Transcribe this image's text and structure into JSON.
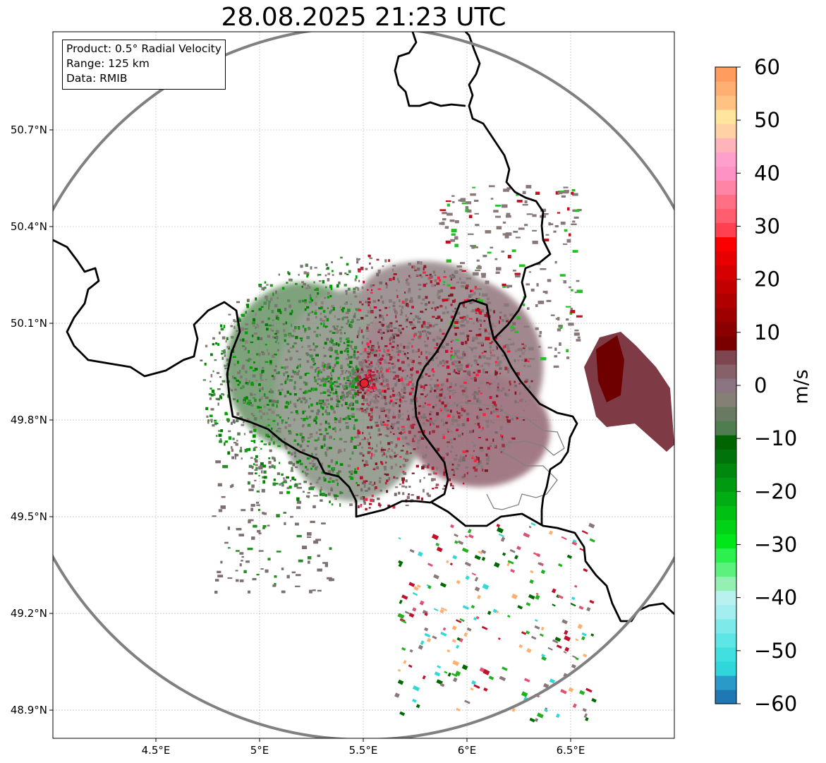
{
  "title": "28.08.2025 21:23 UTC",
  "info": {
    "product": "Product: 0.5° Radial Velocity",
    "range": "Range: 125 km",
    "source": "Data: RMIB"
  },
  "map": {
    "lon_range": [
      4.0,
      7.0
    ],
    "lat_range": [
      48.8,
      51.0
    ],
    "x_ticks": [
      {
        "value": 4.5,
        "label": "4.5°E"
      },
      {
        "value": 5.0,
        "label": "5°E"
      },
      {
        "value": 5.5,
        "label": "5.5°E"
      },
      {
        "value": 6.0,
        "label": "6°E"
      },
      {
        "value": 6.5,
        "label": "6.5°E"
      }
    ],
    "y_ticks": [
      {
        "value": 48.9,
        "label": "48.9°N"
      },
      {
        "value": 49.2,
        "label": "49.2°N"
      },
      {
        "value": 49.5,
        "label": "49.5°N"
      },
      {
        "value": 49.8,
        "label": "49.8°N"
      },
      {
        "value": 50.1,
        "label": "50.1°N"
      },
      {
        "value": 50.4,
        "label": "50.4°N"
      },
      {
        "value": 50.7,
        "label": "50.7°N"
      }
    ],
    "radar_site": {
      "lon": 5.505,
      "lat": 49.914,
      "color": "#e8202a"
    },
    "range_ring_km": 125,
    "range_ring_color": "#808080",
    "border_color": "#000000",
    "admin_border_color": "#808080"
  },
  "colorbar": {
    "unit": "m/s",
    "vmin": -60,
    "vmax": 60,
    "ticks": [
      {
        "value": 60,
        "label": "60"
      },
      {
        "value": 50,
        "label": "50"
      },
      {
        "value": 40,
        "label": "40"
      },
      {
        "value": 30,
        "label": "30"
      },
      {
        "value": 20,
        "label": "20"
      },
      {
        "value": 10,
        "label": "10"
      },
      {
        "value": 0,
        "label": "0"
      },
      {
        "value": -10,
        "label": "−10"
      },
      {
        "value": -20,
        "label": "−20"
      },
      {
        "value": -30,
        "label": "−30"
      },
      {
        "value": -40,
        "label": "−40"
      },
      {
        "value": -50,
        "label": "−50"
      },
      {
        "value": -60,
        "label": "−60"
      }
    ],
    "colors_bottom_to_top": [
      "#1f77b4",
      "#2a9bc8",
      "#2fd6db",
      "#3fe0df",
      "#5ee6e6",
      "#7de9e9",
      "#a3eeee",
      "#b9f1f1",
      "#93f0b2",
      "#5cf07d",
      "#2cf04e",
      "#00e61a",
      "#00d218",
      "#00c014",
      "#00ad12",
      "#009a10",
      "#00870d",
      "#00740b",
      "#006400",
      "#4f7d50",
      "#687a62",
      "#848076",
      "#8a7580",
      "#86616a",
      "#7e4650",
      "#7a0000",
      "#8b0000",
      "#9e0000",
      "#b00000",
      "#c30000",
      "#d60000",
      "#e80000",
      "#fa0000",
      "#ff4050",
      "#ff5e6e",
      "#ff7085",
      "#ff84a5",
      "#ff92c4",
      "#ff9fcc",
      "#ffb4ba",
      "#ffd1a5",
      "#ffe59e",
      "#ffc282",
      "#ffaf72",
      "#ff9c5e"
    ]
  }
}
